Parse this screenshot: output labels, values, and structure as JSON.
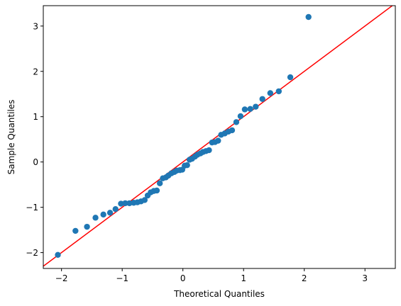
{
  "chart_data": {
    "type": "scatter",
    "title": "",
    "xlabel": "Theoretical Quantiles",
    "ylabel": "Sample Quantiles",
    "xlim": [
      -2.3,
      3.5
    ],
    "ylim": [
      -2.35,
      3.45
    ],
    "xticks": [
      -2,
      -1,
      0,
      1,
      2,
      3
    ],
    "yticks": [
      -2,
      -1,
      0,
      1,
      2,
      3
    ],
    "xtick_labels": [
      "−2",
      "−1",
      "0",
      "1",
      "2",
      "3"
    ],
    "ytick_labels": [
      "−2",
      "−1",
      "0",
      "1",
      "2",
      "3"
    ],
    "grid": false,
    "point_color": "#1f77b4",
    "line_color": "#ff0000",
    "reference_line": {
      "slope": 1,
      "intercept": 0
    },
    "points": [
      [
        -2.06,
        -2.05
      ],
      [
        -1.77,
        -1.52
      ],
      [
        -1.58,
        -1.43
      ],
      [
        -1.44,
        -1.23
      ],
      [
        -1.31,
        -1.16
      ],
      [
        -1.2,
        -1.12
      ],
      [
        -1.11,
        -1.04
      ],
      [
        -1.02,
        -0.92
      ],
      [
        -0.95,
        -0.91
      ],
      [
        -0.88,
        -0.91
      ],
      [
        -0.81,
        -0.9
      ],
      [
        -0.75,
        -0.89
      ],
      [
        -0.69,
        -0.87
      ],
      [
        -0.63,
        -0.84
      ],
      [
        -0.58,
        -0.74
      ],
      [
        -0.53,
        -0.67
      ],
      [
        -0.48,
        -0.64
      ],
      [
        -0.43,
        -0.63
      ],
      [
        -0.38,
        -0.47
      ],
      [
        -0.33,
        -0.36
      ],
      [
        -0.28,
        -0.34
      ],
      [
        -0.24,
        -0.3
      ],
      [
        -0.19,
        -0.25
      ],
      [
        -0.14,
        -0.22
      ],
      [
        -0.1,
        -0.19
      ],
      [
        -0.05,
        -0.18
      ],
      [
        -0.01,
        -0.17
      ],
      [
        0.03,
        -0.08
      ],
      [
        0.07,
        -0.07
      ],
      [
        0.11,
        0.05
      ],
      [
        0.15,
        0.07
      ],
      [
        0.2,
        0.12
      ],
      [
        0.24,
        0.16
      ],
      [
        0.29,
        0.19
      ],
      [
        0.33,
        0.22
      ],
      [
        0.38,
        0.24
      ],
      [
        0.43,
        0.26
      ],
      [
        0.48,
        0.43
      ],
      [
        0.53,
        0.44
      ],
      [
        0.58,
        0.47
      ],
      [
        0.63,
        0.6
      ],
      [
        0.69,
        0.63
      ],
      [
        0.75,
        0.67
      ],
      [
        0.81,
        0.7
      ],
      [
        0.88,
        0.88
      ],
      [
        0.95,
        1.01
      ],
      [
        1.02,
        1.16
      ],
      [
        1.11,
        1.17
      ],
      [
        1.2,
        1.22
      ],
      [
        1.31,
        1.39
      ],
      [
        1.44,
        1.52
      ],
      [
        1.58,
        1.56
      ],
      [
        1.77,
        1.87
      ],
      [
        2.07,
        3.2
      ]
    ]
  }
}
